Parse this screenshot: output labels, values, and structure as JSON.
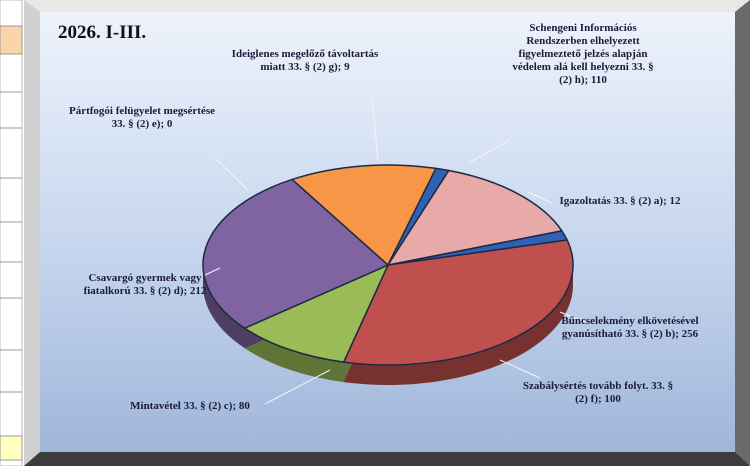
{
  "chart_data": {
    "type": "pie3d",
    "title": "2026. I-III.",
    "values": [
      12,
      256,
      80,
      212,
      0,
      100,
      9,
      110
    ],
    "value_labels": [
      "Igazoltatás 33. § (2) a); 12",
      "Bűncselekmény elkövetésével gyanúsítható 33. § (2) b); 256",
      "Mintavétel 33. § (2) c); 80",
      "Csavargó gyermek vagy fiatalkorú 33. § (2) d); 212",
      "Pártfogói felügyelet megsértése 33. § (2) e); 0",
      "Szabálysértés tovább folyt. 33. § (2) f); 100",
      "Ideiglenes megelőző távoltartás miatt 33. § (2) g); 9",
      "Schengeni Információs Rendszerben elhelyezett figyelmeztető jelzés alapján védelem alá kell helyezni 33. § (2) h); 110"
    ],
    "colors": [
      "#2f62b5",
      "#c0504d",
      "#9bbb59",
      "#8064a2",
      "#4bacc6",
      "#f79646",
      "#2f62b5",
      "#e8aaa8"
    ]
  }
}
